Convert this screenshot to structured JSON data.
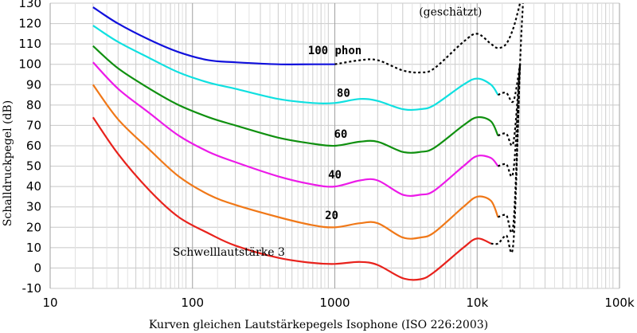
{
  "chart_data": {
    "type": "line",
    "title": "",
    "xlabel": "Kurven gleichen Lautstärkepegels Isophone (ISO 226:2003)",
    "ylabel": "Schalldruckpegel (dB)",
    "xscale": "log",
    "xlim": [
      10,
      100000
    ],
    "ylim": [
      -10,
      130
    ],
    "x_ticks": [
      10,
      100,
      1000,
      10000,
      100000
    ],
    "x_tick_labels": [
      "10",
      "100",
      "1000",
      "10k",
      "100k"
    ],
    "y_ticks": [
      -10,
      0,
      10,
      20,
      30,
      40,
      50,
      60,
      70,
      80,
      90,
      100,
      110,
      120,
      130
    ],
    "grid": true,
    "series": [
      {
        "name": "Schwelllautstärke 3",
        "color": "#e8221c",
        "solid": [
          [
            20,
            74
          ],
          [
            30,
            56
          ],
          [
            50,
            38
          ],
          [
            80,
            25
          ],
          [
            130,
            17
          ],
          [
            200,
            11
          ],
          [
            400,
            5
          ],
          [
            700,
            2.5
          ],
          [
            1000,
            2
          ],
          [
            1500,
            3
          ],
          [
            2000,
            1.5
          ],
          [
            3000,
            -5
          ],
          [
            4000,
            -5.5
          ],
          [
            5000,
            -2
          ],
          [
            8000,
            10
          ],
          [
            10000,
            14.5
          ],
          [
            12500,
            12
          ]
        ],
        "dotted": [
          [
            12500,
            12
          ],
          [
            14000,
            12
          ],
          [
            16000,
            16
          ],
          [
            18000,
            13
          ],
          [
            20000,
            100
          ],
          [
            21000,
            130
          ]
        ]
      },
      {
        "name": "20",
        "color": "#f07818",
        "solid": [
          [
            20,
            90
          ],
          [
            30,
            73
          ],
          [
            50,
            58
          ],
          [
            80,
            45
          ],
          [
            130,
            36
          ],
          [
            200,
            31
          ],
          [
            400,
            25
          ],
          [
            700,
            21
          ],
          [
            1000,
            20
          ],
          [
            1500,
            22
          ],
          [
            2000,
            22
          ],
          [
            3000,
            15
          ],
          [
            4000,
            15
          ],
          [
            5000,
            17.5
          ],
          [
            8000,
            30
          ],
          [
            10000,
            35
          ],
          [
            12500,
            33
          ],
          [
            14000,
            25
          ]
        ],
        "dotted": [
          [
            14000,
            25
          ],
          [
            16000,
            26
          ],
          [
            18000,
            22
          ],
          [
            20000,
            100
          ]
        ]
      },
      {
        "name": "40",
        "color": "#ec1ae8",
        "solid": [
          [
            20,
            101
          ],
          [
            30,
            88
          ],
          [
            50,
            76
          ],
          [
            80,
            65
          ],
          [
            130,
            57
          ],
          [
            200,
            52
          ],
          [
            400,
            45
          ],
          [
            700,
            41
          ],
          [
            1000,
            40
          ],
          [
            1500,
            43
          ],
          [
            2000,
            43
          ],
          [
            3000,
            36
          ],
          [
            4000,
            36
          ],
          [
            5000,
            38
          ],
          [
            8000,
            50
          ],
          [
            10000,
            55
          ],
          [
            12500,
            54
          ],
          [
            14000,
            50
          ]
        ],
        "dotted": [
          [
            14000,
            50
          ],
          [
            16000,
            51
          ],
          [
            18000,
            48
          ],
          [
            20000,
            100
          ]
        ]
      },
      {
        "name": "60",
        "color": "#109010",
        "solid": [
          [
            20,
            109
          ],
          [
            30,
            98
          ],
          [
            50,
            88
          ],
          [
            80,
            80
          ],
          [
            130,
            74
          ],
          [
            200,
            70
          ],
          [
            400,
            64
          ],
          [
            700,
            61
          ],
          [
            1000,
            60
          ],
          [
            1500,
            62
          ],
          [
            2000,
            62
          ],
          [
            3000,
            57
          ],
          [
            4000,
            57
          ],
          [
            5000,
            59
          ],
          [
            8000,
            70
          ],
          [
            10000,
            74
          ],
          [
            12500,
            72
          ],
          [
            14000,
            65
          ]
        ],
        "dotted": [
          [
            14000,
            65
          ],
          [
            16000,
            66
          ],
          [
            18000,
            62
          ],
          [
            20000,
            100
          ]
        ]
      },
      {
        "name": "80",
        "color": "#10e0e0",
        "solid": [
          [
            20,
            119
          ],
          [
            30,
            111
          ],
          [
            50,
            103
          ],
          [
            80,
            96
          ],
          [
            130,
            91
          ],
          [
            200,
            88
          ],
          [
            400,
            83
          ],
          [
            700,
            81
          ],
          [
            1000,
            81
          ],
          [
            1500,
            83
          ],
          [
            2000,
            82
          ],
          [
            3000,
            78
          ],
          [
            4000,
            78
          ],
          [
            5000,
            80
          ],
          [
            8000,
            90
          ],
          [
            10000,
            93
          ],
          [
            12500,
            90
          ],
          [
            14000,
            85
          ]
        ],
        "dotted": [
          [
            14000,
            85
          ],
          [
            16000,
            86
          ],
          [
            18000,
            82
          ],
          [
            20000,
            100
          ]
        ]
      },
      {
        "name": "100 phon",
        "color": "#1010dc",
        "solid": [
          [
            20,
            128
          ],
          [
            30,
            120
          ],
          [
            50,
            112
          ],
          [
            80,
            106
          ],
          [
            130,
            102
          ],
          [
            200,
            101
          ],
          [
            400,
            100
          ],
          [
            700,
            100
          ],
          [
            1000,
            100
          ]
        ],
        "dotted": [
          [
            1000,
            100
          ],
          [
            1500,
            102
          ],
          [
            2000,
            102
          ],
          [
            3000,
            97
          ],
          [
            4000,
            96
          ],
          [
            5000,
            98
          ],
          [
            8000,
            111
          ],
          [
            10000,
            115
          ],
          [
            12500,
            110
          ],
          [
            14000,
            108
          ],
          [
            16000,
            110
          ],
          [
            18000,
            118
          ],
          [
            20000,
            130
          ]
        ]
      }
    ],
    "annotations": [
      {
        "text": "(geschätzt)",
        "x": 6500,
        "y": 124
      },
      {
        "text": "100 phon",
        "x": 1000,
        "y": 105
      },
      {
        "text": "80",
        "x": 1150,
        "y": 84
      },
      {
        "text": "60",
        "x": 1100,
        "y": 64
      },
      {
        "text": "40",
        "x": 1000,
        "y": 44
      },
      {
        "text": "20",
        "x": 950,
        "y": 24
      },
      {
        "text": "Schwelllautstärke 3",
        "x": 180,
        "y": 6
      }
    ]
  }
}
